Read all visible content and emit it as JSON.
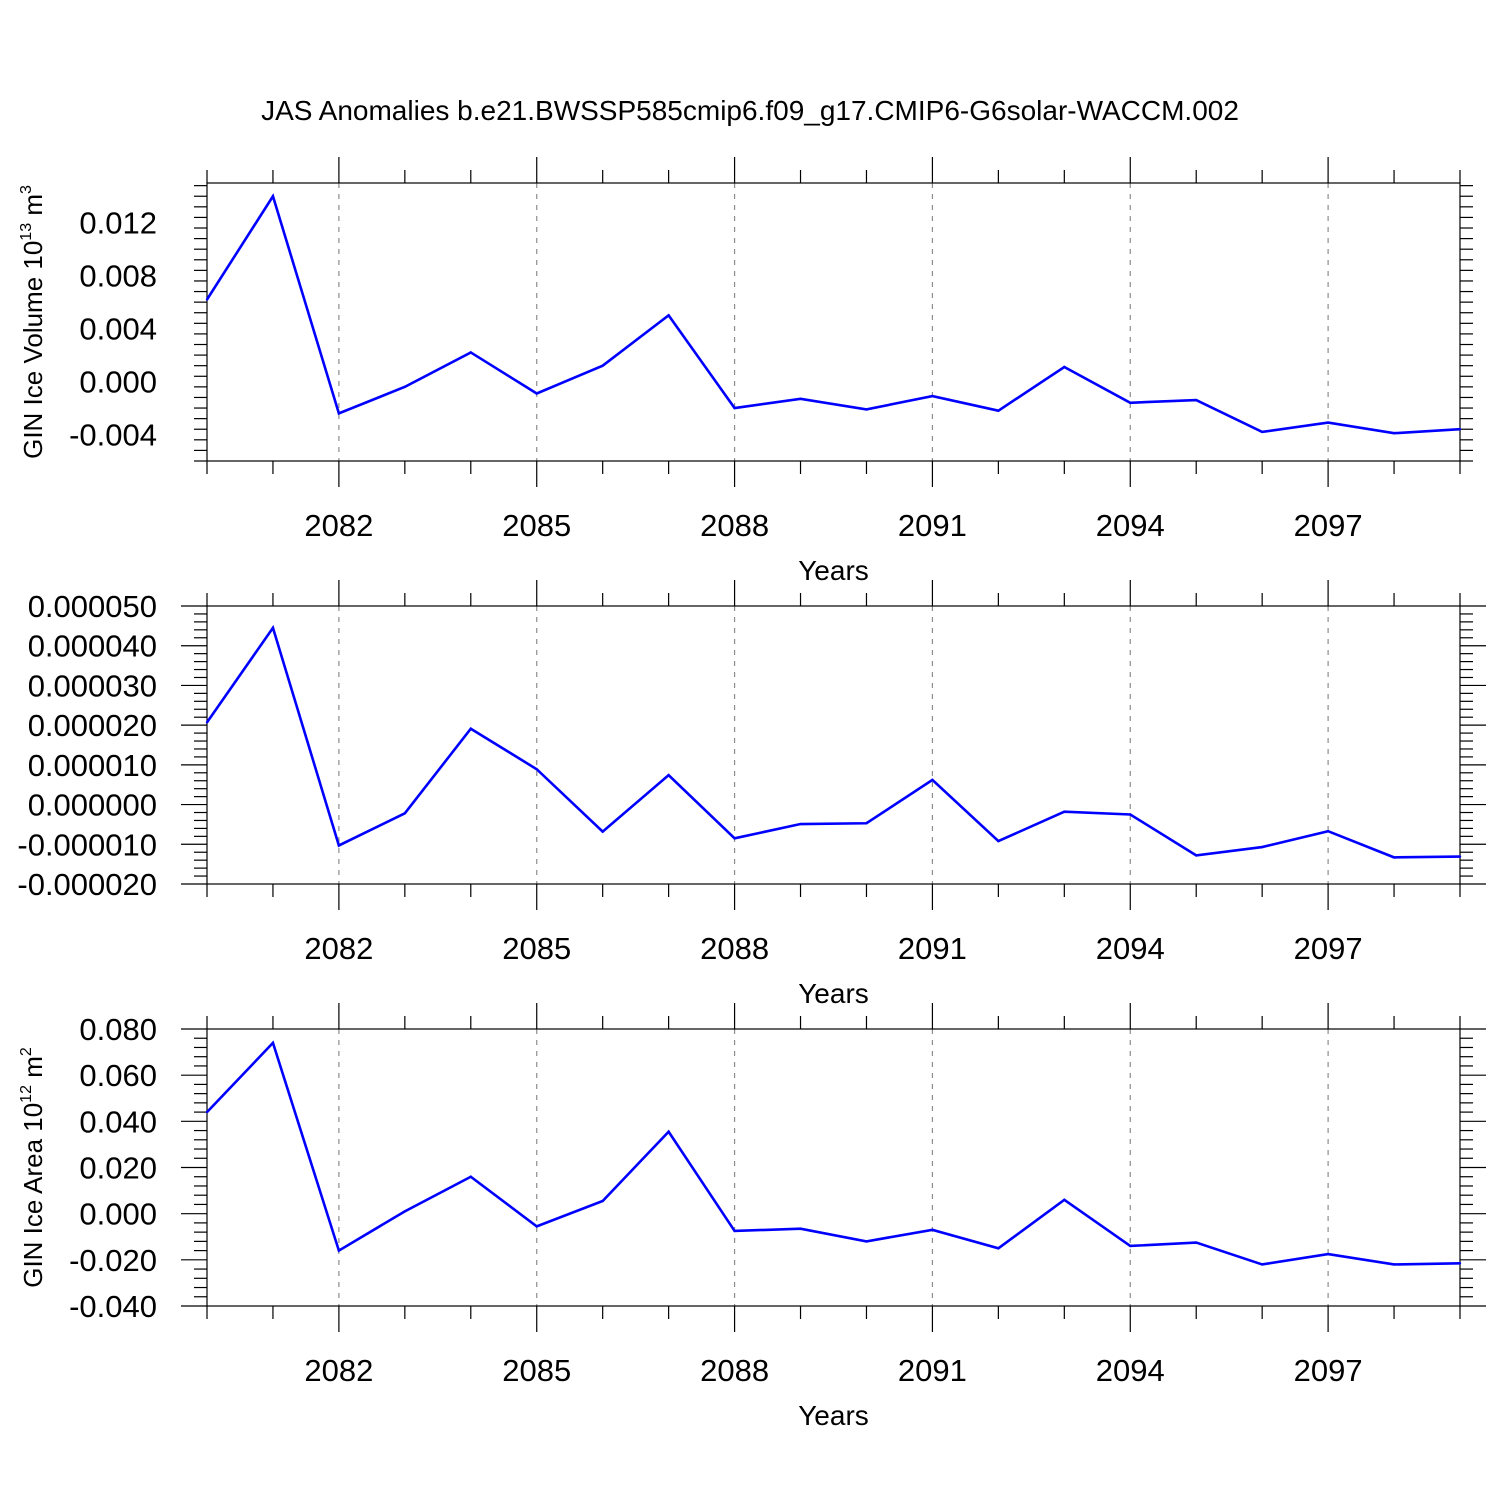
{
  "title": "JAS Anomalies b.e21.BWSSP585cmip6.f09_g17.CMIP6-G6solar-WACCM.002",
  "line_color": "#0000ff",
  "chart_data": [
    {
      "type": "line",
      "ylabel_text": "GIN Ice Volume 10",
      "ylabel_exp": "13",
      "ylabel_unit": " m",
      "ylabel_unit_exp": "3",
      "xlabel": "Years",
      "xlim": [
        2080,
        2099
      ],
      "ylim": [
        -0.006,
        0.015
      ],
      "y_ticks": [
        -0.004,
        0.0,
        0.004,
        0.008,
        0.012
      ],
      "y_tick_labels": [
        "-0.004",
        "0.000",
        "0.004",
        "0.008",
        "0.012"
      ],
      "x_ticks": [
        2082,
        2085,
        2088,
        2091,
        2094,
        2097
      ],
      "x_tick_labels": [
        "2082",
        "2085",
        "2088",
        "2091",
        "2094",
        "2097"
      ],
      "grid": "vertical dashed at major x ticks",
      "x": [
        2080,
        2081,
        2082,
        2083,
        2084,
        2085,
        2086,
        2087,
        2088,
        2089,
        2090,
        2091,
        2092,
        2093,
        2094,
        2095,
        2096,
        2097,
        2098,
        2099
      ],
      "series": [
        {
          "values": [
            0.0062,
            0.014,
            -0.0024,
            -0.0004,
            0.0022,
            -0.0009,
            0.0012,
            0.005,
            -0.002,
            -0.0013,
            -0.0021,
            -0.0011,
            -0.0022,
            0.0011,
            -0.0016,
            -0.0014,
            -0.0038,
            -0.0031,
            -0.0039,
            -0.0036
          ]
        }
      ]
    },
    {
      "type": "line",
      "ylabel_text": "",
      "xlabel": "Years",
      "xlim": [
        2080,
        2099
      ],
      "ylim": [
        -2e-05,
        5e-05
      ],
      "y_ticks": [
        -2e-05,
        -1e-05,
        0.0,
        1e-05,
        2e-05,
        3e-05,
        4e-05,
        5e-05
      ],
      "y_tick_labels": [
        "-0.000020",
        "-0.000010",
        "0.000000",
        "0.000010",
        "0.000020",
        "0.000030",
        "0.000040",
        "0.000050"
      ],
      "x_ticks": [
        2082,
        2085,
        2088,
        2091,
        2094,
        2097
      ],
      "x_tick_labels": [
        "2082",
        "2085",
        "2088",
        "2091",
        "2094",
        "2097"
      ],
      "grid": "vertical dashed at major x ticks",
      "x": [
        2080,
        2081,
        2082,
        2083,
        2084,
        2085,
        2086,
        2087,
        2088,
        2089,
        2090,
        2091,
        2092,
        2093,
        2094,
        2095,
        2096,
        2097,
        2098,
        2099
      ],
      "series": [
        {
          "values": [
            2.07e-05,
            4.45e-05,
            -1.03e-05,
            -2.2e-06,
            1.91e-05,
            8.9e-06,
            -6.8e-06,
            7.4e-06,
            -8.5e-06,
            -4.9e-06,
            -4.7e-06,
            6.2e-06,
            -9.2e-06,
            -1.8e-06,
            -2.5e-06,
            -1.28e-05,
            -1.07e-05,
            -6.7e-06,
            -1.33e-05,
            -1.31e-05
          ]
        }
      ]
    },
    {
      "type": "line",
      "ylabel_text": "GIN Ice Area 10",
      "ylabel_exp": "12",
      "ylabel_unit": " m",
      "ylabel_unit_exp": "2",
      "xlabel": "Years",
      "xlim": [
        2080,
        2099
      ],
      "ylim": [
        -0.04,
        0.08
      ],
      "y_ticks": [
        -0.04,
        -0.02,
        0.0,
        0.02,
        0.04,
        0.06,
        0.08
      ],
      "y_tick_labels": [
        "-0.040",
        "-0.020",
        "0.000",
        "0.020",
        "0.040",
        "0.060",
        "0.080"
      ],
      "x_ticks": [
        2082,
        2085,
        2088,
        2091,
        2094,
        2097
      ],
      "x_tick_labels": [
        "2082",
        "2085",
        "2088",
        "2091",
        "2094",
        "2097"
      ],
      "grid": "vertical dashed at major x ticks",
      "x": [
        2080,
        2081,
        2082,
        2083,
        2084,
        2085,
        2086,
        2087,
        2088,
        2089,
        2090,
        2091,
        2092,
        2093,
        2094,
        2095,
        2096,
        2097,
        2098,
        2099
      ],
      "series": [
        {
          "values": [
            0.044,
            0.074,
            -0.016,
            0.001,
            0.016,
            -0.0055,
            0.0055,
            0.0355,
            -0.0075,
            -0.0065,
            -0.012,
            -0.007,
            -0.015,
            0.006,
            -0.014,
            -0.0125,
            -0.022,
            -0.0175,
            -0.022,
            -0.0215
          ]
        }
      ]
    }
  ]
}
